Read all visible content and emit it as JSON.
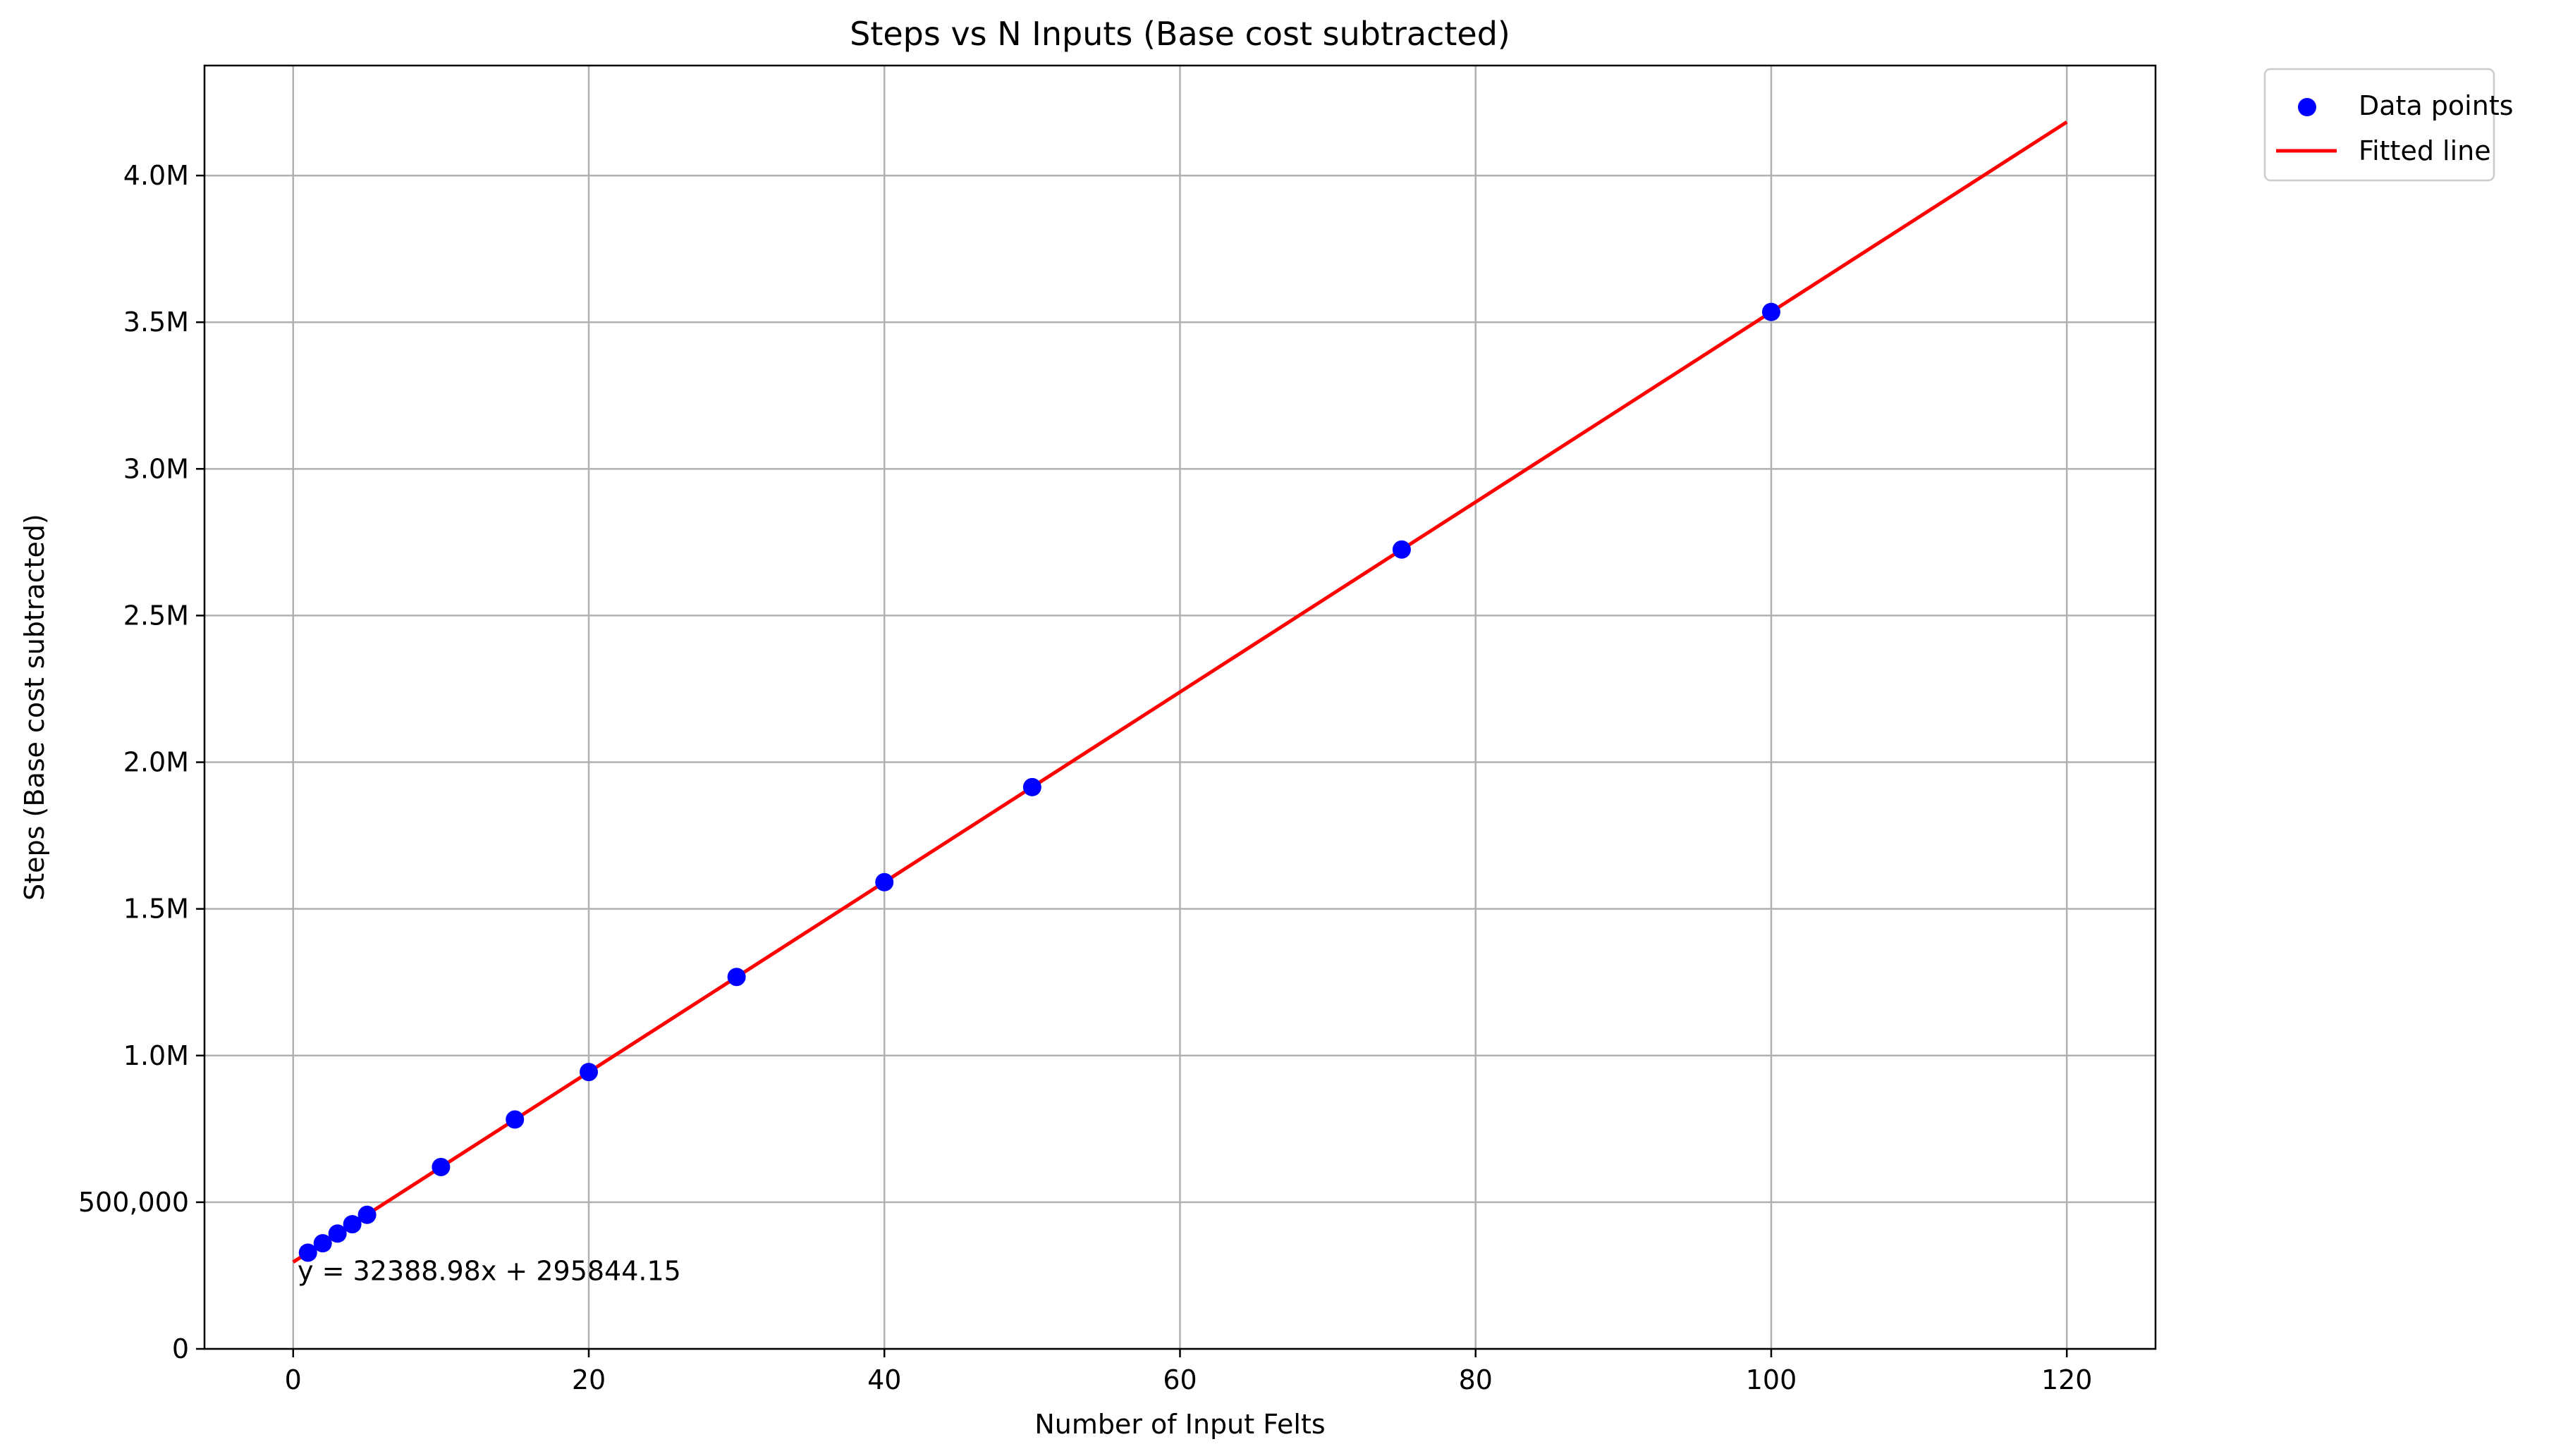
{
  "chart_data": {
    "type": "scatter",
    "title": "Steps vs N Inputs (Base cost subtracted)",
    "xlabel": "Number of Input Felts",
    "ylabel": "Steps (Base cost subtracted)",
    "xlim": [
      -6,
      126
    ],
    "ylim": [
      0,
      4375000
    ],
    "x_ticks": [
      0,
      20,
      40,
      60,
      80,
      100,
      120
    ],
    "x_tick_labels": [
      "0",
      "20",
      "40",
      "60",
      "80",
      "100",
      "120"
    ],
    "y_ticks": [
      0,
      500000,
      1000000,
      1500000,
      2000000,
      2500000,
      3000000,
      3500000,
      4000000
    ],
    "y_tick_labels": [
      "0",
      "500,000",
      "1.0M",
      "1.5M",
      "2.0M",
      "2.5M",
      "3.0M",
      "3.5M",
      "4.0M"
    ],
    "grid": true,
    "legend_position": "outside-top-right",
    "series": [
      {
        "name": "Data points",
        "kind": "scatter",
        "color": "#0000ff",
        "x": [
          1,
          2,
          3,
          4,
          5,
          10,
          15,
          20,
          30,
          40,
          50,
          75,
          100
        ],
        "y": [
          328000,
          360000,
          393000,
          425000,
          457000,
          620000,
          782000,
          944000,
          1268000,
          1591000,
          1915000,
          2725000,
          3535000
        ]
      },
      {
        "name": "Fitted line",
        "kind": "line",
        "color": "#ff0000",
        "x": [
          0,
          120
        ],
        "y": [
          295844.15,
          4182521.75
        ]
      }
    ],
    "annotation": {
      "text": "y = 32388.98x + 295844.15",
      "x": 0.3,
      "y": 265000
    }
  }
}
